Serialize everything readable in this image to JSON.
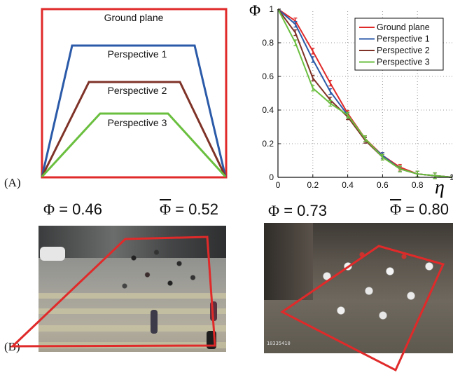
{
  "panel_labels": {
    "a": "(A)",
    "b": "(B)"
  },
  "diagram": {
    "outer_label": "Ground plane",
    "levels": [
      {
        "label": "Perspective  1",
        "color": "#2b5aa8"
      },
      {
        "label": "Perspective  2",
        "color": "#7f3328"
      },
      {
        "label": "Perspective  3",
        "color": "#6abf3f"
      }
    ],
    "outer_color": "#e02a2a"
  },
  "chart_data": {
    "type": "line",
    "ylabel": "Φ",
    "xlabel": "η",
    "xlim": [
      0,
      1
    ],
    "ylim": [
      0,
      1
    ],
    "x_ticks": [
      "0",
      "0.2",
      "0.4",
      "0.6",
      "0.8",
      "1"
    ],
    "y_ticks": [
      "0",
      "0.2",
      "0.4",
      "0.6",
      "0.8",
      "1"
    ],
    "grid": "dotted",
    "legend_position": "top-right",
    "x": [
      0,
      0.1,
      0.2,
      0.3,
      0.4,
      0.5,
      0.6,
      0.7,
      0.8,
      0.9,
      1.0
    ],
    "series": [
      {
        "name": "Ground plane",
        "color": "#e02a2a",
        "values": [
          1.0,
          0.93,
          0.75,
          0.56,
          0.38,
          0.23,
          0.13,
          0.06,
          0.02,
          0.01,
          0.0
        ]
      },
      {
        "name": "Perspective 1",
        "color": "#2b5aa8",
        "values": [
          1.0,
          0.91,
          0.7,
          0.51,
          0.37,
          0.22,
          0.13,
          0.05,
          0.02,
          0.01,
          0.0
        ]
      },
      {
        "name": "Perspective 2",
        "color": "#7f3328",
        "values": [
          1.0,
          0.86,
          0.59,
          0.46,
          0.36,
          0.22,
          0.12,
          0.05,
          0.02,
          0.01,
          0.0
        ]
      },
      {
        "name": "Perspective 3",
        "color": "#6abf3f",
        "values": [
          1.0,
          0.8,
          0.53,
          0.44,
          0.37,
          0.23,
          0.12,
          0.05,
          0.02,
          0.01,
          0.0
        ]
      }
    ]
  },
  "stats": {
    "left": {
      "phi_symbol": "Φ",
      "phi_value": "= 0.46",
      "phibar_symbol": "Φ",
      "phibar_value": "= 0.52"
    },
    "right": {
      "phi_symbol": "Φ",
      "phi_value": "= 0.73",
      "phibar_symbol": "Φ",
      "phibar_value": "= 0.80"
    }
  },
  "photos": {
    "left_overlay_color": "#e02a2a",
    "right_overlay_color": "#e02a2a",
    "right_timestamp": "10335410"
  }
}
